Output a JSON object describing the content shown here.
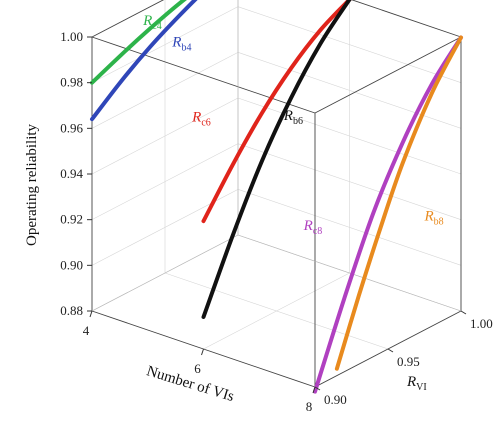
{
  "chart_data": {
    "type": "line",
    "title": "",
    "xlabel": "Number of VIs",
    "ylabel": "Operating reliability",
    "zlabel": "R",
    "zlabel_sub": "VI",
    "x_ticks": [
      "4",
      "6",
      "8"
    ],
    "y_ticks": [
      "0.88",
      "0.90",
      "0.92",
      "0.94",
      "0.96",
      "0.98",
      "1.00"
    ],
    "z_ticks": [
      "0.90",
      "0.95",
      "1.00"
    ],
    "xlim": [
      4,
      8
    ],
    "ylim": [
      0.88,
      1.0
    ],
    "zlim": [
      0.9,
      1.0
    ],
    "grid": true,
    "series": [
      {
        "name": "R",
        "sub": "c4",
        "color": "#2db34a",
        "nvi": 4,
        "r_vi": [
          0.9,
          0.92,
          0.94,
          0.96,
          0.98,
          1.0
        ],
        "reliability": [
          0.98,
          0.9855,
          0.9905,
          0.9948,
          0.9978,
          0.9998
        ]
      },
      {
        "name": "R",
        "sub": "b4",
        "color": "#2f46b8",
        "nvi": 4,
        "r_vi": [
          0.9,
          0.92,
          0.94,
          0.96,
          0.98,
          1.0
        ],
        "reliability": [
          0.964,
          0.974,
          0.9825,
          0.9895,
          0.9955,
          0.9998
        ]
      },
      {
        "name": "R",
        "sub": "c6",
        "color": "#e0241b",
        "nvi": 6,
        "r_vi": [
          0.9,
          0.92,
          0.94,
          0.96,
          0.98,
          1.0
        ],
        "reliability": [
          0.936,
          0.954,
          0.97,
          0.983,
          0.993,
          0.9998
        ]
      },
      {
        "name": "R",
        "sub": "b6",
        "color": "#111111",
        "nvi": 6,
        "r_vi": [
          0.9,
          0.92,
          0.94,
          0.96,
          0.98,
          1.0
        ],
        "reliability": [
          0.894,
          0.923,
          0.949,
          0.97,
          0.987,
          0.9998
        ]
      },
      {
        "name": "R",
        "sub": "c8",
        "color": "#b040c0",
        "nvi": 8,
        "r_vi": [
          0.9,
          0.92,
          0.94,
          0.96,
          0.98,
          1.0
        ],
        "reliability": [
          0.878,
          0.912,
          0.943,
          0.967,
          0.986,
          0.9998
        ]
      },
      {
        "name": "R",
        "sub": "b8",
        "color": "#e88a1e",
        "nvi": 8,
        "r_vi": [
          0.915,
          0.93,
          0.945,
          0.96,
          0.98,
          1.0
        ],
        "reliability": [
          0.883,
          0.91,
          0.935,
          0.958,
          0.982,
          0.9998
        ]
      }
    ]
  }
}
